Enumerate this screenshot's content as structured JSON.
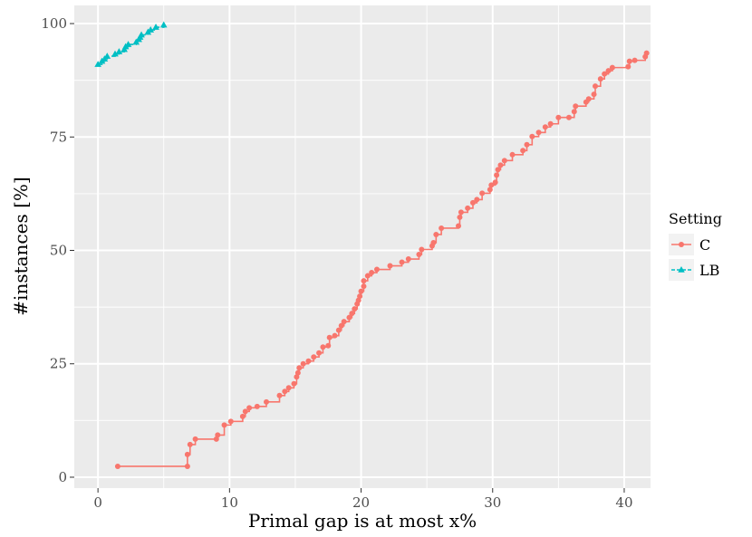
{
  "chart_data": {
    "type": "line",
    "title": "",
    "xlabel": "Primal gap is at most x%",
    "ylabel": "#instances [%]",
    "xlim": [
      -1.8,
      42.0
    ],
    "ylim": [
      -2.4,
      104.0
    ],
    "x_ticks": [
      0,
      10,
      20,
      30,
      40
    ],
    "y_ticks": [
      0,
      25,
      50,
      75,
      100
    ],
    "grid": true,
    "legend": {
      "title": "Setting",
      "position": "right"
    },
    "colors": {
      "C": "#f8766d",
      "LB": "#00bfc4",
      "panel": "#ebebeb",
      "grid": "#ffffff"
    },
    "series": [
      {
        "name": "C",
        "marker": "circle",
        "line": "solid",
        "points": [
          [
            1.5,
            2.4
          ],
          [
            6.8,
            2.4
          ],
          [
            6.8,
            5.0
          ],
          [
            7.0,
            7.2
          ],
          [
            7.4,
            8.4
          ],
          [
            9.0,
            8.4
          ],
          [
            9.1,
            9.3
          ],
          [
            9.6,
            11.5
          ],
          [
            10.1,
            12.3
          ],
          [
            11.0,
            13.4
          ],
          [
            11.2,
            14.5
          ],
          [
            11.5,
            15.3
          ],
          [
            12.1,
            15.6
          ],
          [
            12.8,
            16.6
          ],
          [
            13.8,
            18.0
          ],
          [
            14.2,
            18.9
          ],
          [
            14.5,
            19.7
          ],
          [
            14.9,
            20.6
          ],
          [
            15.1,
            22.1
          ],
          [
            15.2,
            23.0
          ],
          [
            15.3,
            24.1
          ],
          [
            15.6,
            25.0
          ],
          [
            16.0,
            25.6
          ],
          [
            16.4,
            26.5
          ],
          [
            16.8,
            27.4
          ],
          [
            17.1,
            28.7
          ],
          [
            17.5,
            29.0
          ],
          [
            17.6,
            30.8
          ],
          [
            18.0,
            31.2
          ],
          [
            18.3,
            32.4
          ],
          [
            18.5,
            33.4
          ],
          [
            18.7,
            34.3
          ],
          [
            19.1,
            35.2
          ],
          [
            19.3,
            36.1
          ],
          [
            19.5,
            37.1
          ],
          [
            19.7,
            38.2
          ],
          [
            19.8,
            39.0
          ],
          [
            19.9,
            39.9
          ],
          [
            20.0,
            41.0
          ],
          [
            20.2,
            42.1
          ],
          [
            20.2,
            43.3
          ],
          [
            20.5,
            44.4
          ],
          [
            20.8,
            45.1
          ],
          [
            21.2,
            45.8
          ],
          [
            22.2,
            46.6
          ],
          [
            23.1,
            47.4
          ],
          [
            23.6,
            48.1
          ],
          [
            24.4,
            49.1
          ],
          [
            24.6,
            50.2
          ],
          [
            25.4,
            51.0
          ],
          [
            25.5,
            51.7
          ],
          [
            25.7,
            53.5
          ],
          [
            26.1,
            54.9
          ],
          [
            27.4,
            55.4
          ],
          [
            27.5,
            57.3
          ],
          [
            27.6,
            58.4
          ],
          [
            28.1,
            59.3
          ],
          [
            28.5,
            60.5
          ],
          [
            28.8,
            61.2
          ],
          [
            29.2,
            62.6
          ],
          [
            29.8,
            63.4
          ],
          [
            29.9,
            64.4
          ],
          [
            30.2,
            65.0
          ],
          [
            30.3,
            66.6
          ],
          [
            30.4,
            67.8
          ],
          [
            30.6,
            68.8
          ],
          [
            30.9,
            69.8
          ],
          [
            31.5,
            71.1
          ],
          [
            32.3,
            72.0
          ],
          [
            32.6,
            73.3
          ],
          [
            33.0,
            75.1
          ],
          [
            33.5,
            76.0
          ],
          [
            34.0,
            77.2
          ],
          [
            34.4,
            77.9
          ],
          [
            35.0,
            79.3
          ],
          [
            35.8,
            79.3
          ],
          [
            36.2,
            80.6
          ],
          [
            36.3,
            81.8
          ],
          [
            37.1,
            82.7
          ],
          [
            37.3,
            83.4
          ],
          [
            37.7,
            84.4
          ],
          [
            37.8,
            86.2
          ],
          [
            38.2,
            87.8
          ],
          [
            38.5,
            88.9
          ],
          [
            38.8,
            89.6
          ],
          [
            39.1,
            90.3
          ],
          [
            40.3,
            90.5
          ],
          [
            40.4,
            91.7
          ],
          [
            40.8,
            91.9
          ],
          [
            41.6,
            92.7
          ],
          [
            41.7,
            93.5
          ]
        ]
      },
      {
        "name": "LB",
        "marker": "triangle",
        "line": "dashed",
        "points": [
          [
            0.0,
            91.0
          ],
          [
            0.3,
            91.7
          ],
          [
            0.5,
            92.2
          ],
          [
            0.7,
            92.8
          ],
          [
            1.3,
            93.3
          ],
          [
            1.6,
            93.8
          ],
          [
            2.0,
            94.3
          ],
          [
            2.1,
            94.9
          ],
          [
            2.3,
            95.4
          ],
          [
            2.9,
            95.9
          ],
          [
            3.1,
            96.5
          ],
          [
            3.2,
            97.0
          ],
          [
            3.3,
            97.5
          ],
          [
            3.8,
            98.1
          ],
          [
            4.0,
            98.6
          ],
          [
            4.4,
            99.2
          ],
          [
            5.0,
            99.7
          ]
        ]
      }
    ]
  }
}
